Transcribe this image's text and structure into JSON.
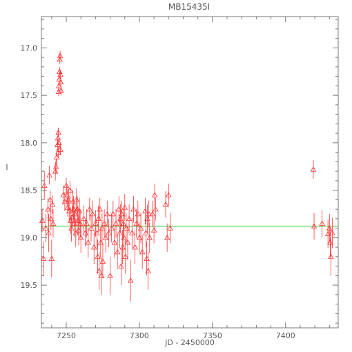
{
  "chart_data": {
    "type": "scatter",
    "title": "MB15435I",
    "xlabel": "JD - 2450000",
    "ylabel": "I",
    "xlim": [
      7233,
      7436
    ],
    "ylim": [
      19.95,
      16.67
    ],
    "y_inverted": true,
    "grid": false,
    "x_ticks": [
      "7250",
      "7300",
      "7350",
      "7400"
    ],
    "y_ticks": [
      "17.0",
      "17.5",
      "18.0",
      "18.5",
      "19.0",
      "19.5"
    ],
    "x_tick_values": [
      7250,
      7300,
      7350,
      7400
    ],
    "y_tick_values": [
      17.0,
      17.5,
      18.0,
      18.5,
      19.0,
      19.5
    ],
    "baseline": 18.88,
    "colors": {
      "points": "#ff3030",
      "baseline": "#33cc33",
      "axes": "#777777"
    },
    "series": [
      {
        "marker": "triangle-open",
        "points": [
          [
            7233.5,
            18.82,
            0.12
          ],
          [
            7234.5,
            19.22,
            0.18
          ],
          [
            7235.0,
            18.45,
            0.15
          ],
          [
            7236.0,
            18.9,
            0.15
          ],
          [
            7237.5,
            18.7,
            0.12
          ],
          [
            7238.0,
            18.95,
            0.2
          ],
          [
            7238.5,
            18.34,
            0.1
          ],
          [
            7239.0,
            18.6,
            0.1
          ],
          [
            7239.5,
            18.8,
            0.12
          ],
          [
            7240.0,
            19.22,
            0.2
          ],
          [
            7240.5,
            18.65,
            0.1
          ],
          [
            7241.0,
            18.85,
            0.15
          ],
          [
            7242.5,
            18.3,
            0.1
          ],
          [
            7243.0,
            18.25,
            0.08
          ],
          [
            7243.5,
            18.15,
            0.08
          ],
          [
            7244.0,
            18.02,
            0.06
          ],
          [
            7244.3,
            17.95,
            0.06
          ],
          [
            7244.6,
            17.89,
            0.05
          ],
          [
            7244.8,
            17.46,
            0.05
          ],
          [
            7245.0,
            17.4,
            0.05
          ],
          [
            7245.2,
            17.33,
            0.05
          ],
          [
            7245.4,
            17.25,
            0.05
          ],
          [
            7245.6,
            17.12,
            0.05
          ],
          [
            7245.8,
            17.08,
            0.05
          ],
          [
            7246.0,
            17.28,
            0.05
          ],
          [
            7246.2,
            17.36,
            0.05
          ],
          [
            7246.4,
            17.45,
            0.05
          ],
          [
            7246.0,
            18.07,
            0.06
          ],
          [
            7244.5,
            18.1,
            0.06
          ],
          [
            7245.0,
            18.0,
            0.06
          ],
          [
            7248.0,
            18.55,
            0.1
          ],
          [
            7249.0,
            18.62,
            0.1
          ],
          [
            7250.0,
            18.45,
            0.08
          ],
          [
            7250.5,
            18.55,
            0.1
          ],
          [
            7251.0,
            18.68,
            0.1
          ],
          [
            7251.5,
            18.6,
            0.12
          ],
          [
            7252.0,
            18.72,
            0.12
          ],
          [
            7252.5,
            18.5,
            0.1
          ],
          [
            7253.0,
            18.82,
            0.14
          ],
          [
            7253.5,
            18.9,
            0.14
          ],
          [
            7254.0,
            18.78,
            0.12
          ],
          [
            7254.5,
            18.62,
            0.12
          ],
          [
            7255.0,
            18.7,
            0.14
          ],
          [
            7255.5,
            18.85,
            0.14
          ],
          [
            7256.0,
            18.75,
            0.12
          ],
          [
            7256.5,
            18.95,
            0.15
          ],
          [
            7257.0,
            18.6,
            0.12
          ],
          [
            7257.5,
            18.7,
            0.14
          ],
          [
            7258.0,
            18.82,
            0.15
          ],
          [
            7258.5,
            18.92,
            0.16
          ],
          [
            7259.0,
            18.72,
            0.14
          ],
          [
            7259.5,
            18.85,
            0.15
          ],
          [
            7260.0,
            19.0,
            0.16
          ],
          [
            7262.0,
            18.8,
            0.14
          ],
          [
            7263.0,
            18.95,
            0.14
          ],
          [
            7264.0,
            18.85,
            0.15
          ],
          [
            7265.0,
            19.05,
            0.16
          ],
          [
            7266.0,
            18.7,
            0.12
          ],
          [
            7267.0,
            18.9,
            0.14
          ],
          [
            7268.0,
            18.75,
            0.14
          ],
          [
            7269.0,
            19.1,
            0.18
          ],
          [
            7270.0,
            18.85,
            0.14
          ],
          [
            7271.0,
            18.95,
            0.16
          ],
          [
            7271.5,
            19.2,
            0.18
          ],
          [
            7272.0,
            18.8,
            0.14
          ],
          [
            7272.5,
            19.35,
            0.2
          ],
          [
            7273.0,
            18.7,
            0.12
          ],
          [
            7273.5,
            19.05,
            0.16
          ],
          [
            7274.0,
            19.4,
            0.2
          ],
          [
            7274.5,
            18.9,
            0.16
          ],
          [
            7275.0,
            19.25,
            0.18
          ],
          [
            7276.0,
            18.85,
            0.15
          ],
          [
            7277.0,
            19.0,
            0.16
          ],
          [
            7278.0,
            18.75,
            0.14
          ],
          [
            7279.0,
            18.95,
            0.15
          ],
          [
            7280.0,
            19.4,
            0.2
          ],
          [
            7281.0,
            18.9,
            0.15
          ],
          [
            7282.0,
            18.75,
            0.14
          ],
          [
            7283.0,
            19.05,
            0.16
          ],
          [
            7284.0,
            18.85,
            0.15
          ],
          [
            7285.0,
            19.15,
            0.18
          ],
          [
            7286.0,
            18.7,
            0.14
          ],
          [
            7286.5,
            18.95,
            0.16
          ],
          [
            7287.0,
            18.8,
            0.15
          ],
          [
            7287.5,
            19.3,
            0.2
          ],
          [
            7288.0,
            18.75,
            0.14
          ],
          [
            7288.5,
            19.1,
            0.18
          ],
          [
            7289.0,
            18.85,
            0.16
          ],
          [
            7289.5,
            19.0,
            0.16
          ],
          [
            7290.0,
            18.68,
            0.14
          ],
          [
            7290.5,
            19.2,
            0.18
          ],
          [
            7291.0,
            18.9,
            0.16
          ],
          [
            7292.0,
            19.05,
            0.18
          ],
          [
            7293.0,
            18.8,
            0.15
          ],
          [
            7294.0,
            19.45,
            0.22
          ],
          [
            7295.0,
            18.95,
            0.16
          ],
          [
            7296.0,
            18.7,
            0.14
          ],
          [
            7297.0,
            19.1,
            0.18
          ],
          [
            7298.0,
            18.85,
            0.15
          ],
          [
            7299.0,
            18.75,
            0.14
          ],
          [
            7300.0,
            19.0,
            0.16
          ],
          [
            7301.0,
            18.9,
            0.16
          ],
          [
            7302.0,
            19.15,
            0.18
          ],
          [
            7304.0,
            18.72,
            0.14
          ],
          [
            7304.5,
            18.95,
            0.15
          ],
          [
            7305.0,
            19.22,
            0.18
          ],
          [
            7305.5,
            18.8,
            0.15
          ],
          [
            7306.0,
            19.35,
            0.2
          ],
          [
            7306.5,
            18.75,
            0.14
          ],
          [
            7307.0,
            19.0,
            0.16
          ],
          [
            7309.0,
            18.75,
            0.14
          ],
          [
            7310.0,
            18.92,
            0.14
          ],
          [
            7310.5,
            18.55,
            0.12
          ],
          [
            7311.0,
            18.7,
            0.12
          ],
          [
            7318.0,
            18.65,
            0.14
          ],
          [
            7319.0,
            19.0,
            0.15
          ],
          [
            7320.0,
            18.55,
            0.12
          ],
          [
            7321.0,
            18.9,
            0.16
          ],
          [
            7419.0,
            18.28,
            0.1
          ],
          [
            7419.5,
            18.88,
            0.14
          ],
          [
            7425.0,
            18.85,
            0.14
          ],
          [
            7429.0,
            18.96,
            0.15
          ],
          [
            7430.0,
            18.9,
            0.15
          ],
          [
            7430.5,
            19.05,
            0.16
          ],
          [
            7431.0,
            19.2,
            0.2
          ],
          [
            7432.0,
            18.95,
            0.16
          ]
        ]
      }
    ]
  }
}
